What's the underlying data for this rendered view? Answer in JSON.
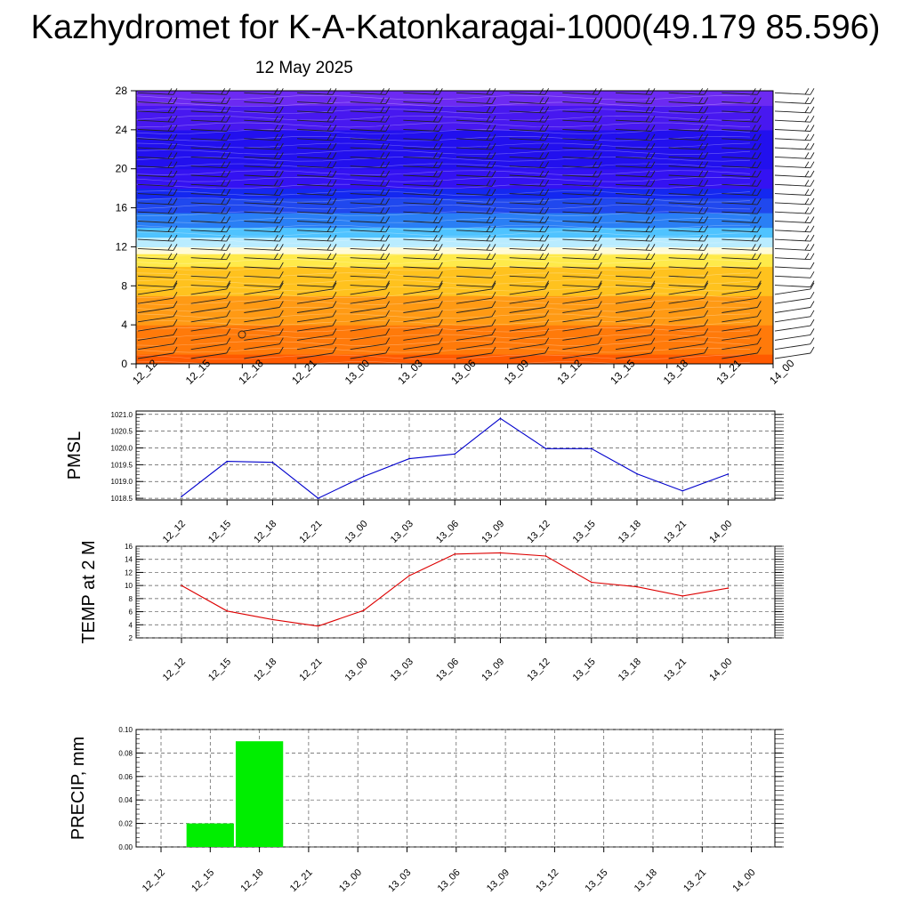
{
  "title": "Kazhydromet for K-A-Katonkaragai-1000(49.179 85.596)",
  "subtitle": "12 May 2025",
  "time_labels": [
    "12_12",
    "12_15",
    "12_18",
    "12_21",
    "13_00",
    "13_03",
    "13_06",
    "13_09",
    "13_12",
    "13_15",
    "13_18",
    "13_21",
    "14_00"
  ],
  "chart_data": [
    {
      "type": "heatmap",
      "xlabel": "",
      "ylabel": "",
      "categories": [
        "12_12",
        "12_15",
        "12_18",
        "12_21",
        "13_00",
        "13_03",
        "13_06",
        "13_09",
        "13_12",
        "13_15",
        "13_18",
        "13_21",
        "14_00"
      ],
      "yticks": [
        0,
        4,
        8,
        12,
        16,
        20,
        24,
        28
      ],
      "ylim": [
        0,
        28
      ],
      "color_bands": [
        {
          "from": 0,
          "to": 1,
          "color": "#ff5a00"
        },
        {
          "from": 1,
          "to": 4,
          "color": "#ff7a0a"
        },
        {
          "from": 4,
          "to": 7,
          "color": "#ff9a14"
        },
        {
          "from": 7,
          "to": 10,
          "color": "#ffc21e"
        },
        {
          "from": 10,
          "to": 11.3,
          "color": "#ffea4a"
        },
        {
          "from": 11.3,
          "to": 12,
          "color": "#fffbd8"
        },
        {
          "from": 12,
          "to": 13,
          "color": "#b9ecff"
        },
        {
          "from": 13,
          "to": 14,
          "color": "#4fc3ff"
        },
        {
          "from": 14,
          "to": 15.5,
          "color": "#2a7ff5"
        },
        {
          "from": 15.5,
          "to": 17,
          "color": "#2048ee"
        },
        {
          "from": 17,
          "to": 18,
          "color": "#1428f0"
        },
        {
          "from": 18,
          "to": 20,
          "color": "#3412f2"
        },
        {
          "from": 20,
          "to": 24,
          "color": "#2210ee"
        },
        {
          "from": 24,
          "to": 26.5,
          "color": "#4818f0"
        },
        {
          "from": 26.5,
          "to": 28,
          "color": "#6c2af2"
        }
      ]
    },
    {
      "type": "line",
      "ylabel": "PMSL",
      "categories": [
        "12_12",
        "12_15",
        "12_18",
        "12_21",
        "13_00",
        "13_03",
        "13_06",
        "13_09",
        "13_12",
        "13_15",
        "13_18",
        "13_21",
        "14_00"
      ],
      "values": [
        1018.55,
        1019.6,
        1019.57,
        1018.5,
        1019.15,
        1019.68,
        1019.82,
        1020.88,
        1019.98,
        1019.98,
        1019.23,
        1018.72,
        1019.22
      ],
      "yticks": [
        "1018.5",
        "1019.0",
        "1019.5",
        "1020.0",
        "1020.5",
        "1021.0"
      ],
      "ylim": [
        1018.45,
        1021.1
      ],
      "color": "#0000cc"
    },
    {
      "type": "line",
      "ylabel": "TEMP at 2 M",
      "categories": [
        "12_12",
        "12_15",
        "12_18",
        "12_21",
        "13_00",
        "13_03",
        "13_06",
        "13_09",
        "13_12",
        "13_15",
        "13_18",
        "13_21",
        "14_00"
      ],
      "values": [
        10.0,
        6.1,
        4.8,
        3.8,
        6.2,
        11.5,
        14.8,
        15.0,
        14.5,
        10.5,
        9.8,
        8.4,
        9.6
      ],
      "yticks": [
        "2",
        "4",
        "6",
        "8",
        "10",
        "12",
        "14",
        "16"
      ],
      "ylim": [
        2,
        16
      ],
      "color": "#dd0000"
    },
    {
      "type": "bar",
      "ylabel": "PRECIP, mm",
      "categories": [
        "12_12",
        "12_15",
        "12_18",
        "12_21",
        "13_00",
        "13_03",
        "13_06",
        "13_09",
        "13_12",
        "13_15",
        "13_18",
        "13_21",
        "14_00"
      ],
      "values": [
        0,
        0.02,
        0.09,
        0,
        0,
        0,
        0,
        0,
        0,
        0,
        0,
        0,
        0
      ],
      "yticks": [
        "0.00",
        "0.02",
        "0.04",
        "0.06",
        "0.08",
        "0.10"
      ],
      "ylim": [
        0,
        0.1
      ],
      "color": "#00ee00"
    }
  ]
}
